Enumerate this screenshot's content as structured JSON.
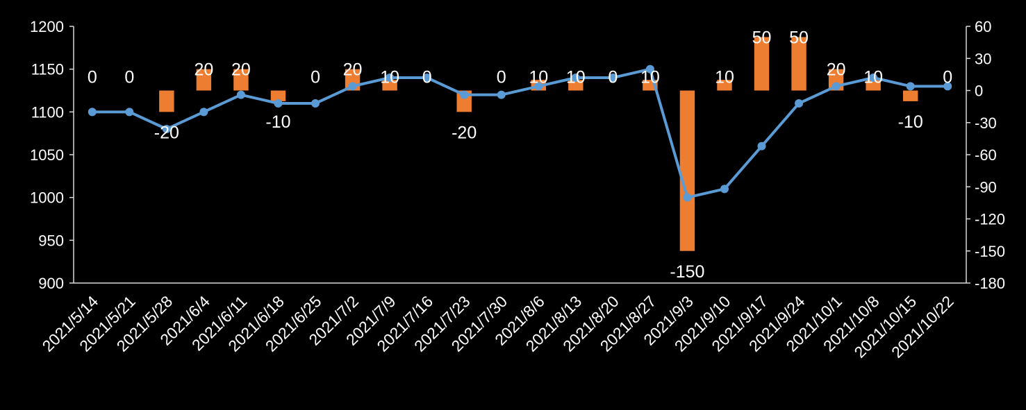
{
  "chart_data": {
    "type": "bar+line",
    "title": "",
    "background": "#000000",
    "categories": [
      "2021/5/14",
      "2021/5/21",
      "2021/5/28",
      "2021/6/4",
      "2021/6/11",
      "2021/6/18",
      "2021/6/25",
      "2021/7/2",
      "2021/7/9",
      "2021/7/16",
      "2021/7/23",
      "2021/7/30",
      "2021/8/6",
      "2021/8/13",
      "2021/8/20",
      "2021/8/27",
      "2021/9/3",
      "2021/9/10",
      "2021/9/17",
      "2021/9/24",
      "2021/10/1",
      "2021/10/8",
      "2021/10/15",
      "2021/10/22"
    ],
    "series": [
      {
        "type": "line",
        "axis": "left",
        "color": "#5B9BD5",
        "values": [
          1100,
          1100,
          1080,
          1100,
          1120,
          1110,
          1110,
          1130,
          1140,
          1140,
          1120,
          1120,
          1130,
          1140,
          1140,
          1150,
          1000,
          1010,
          1060,
          1110,
          1130,
          1140,
          1130,
          1130
        ]
      },
      {
        "type": "bar",
        "axis": "right",
        "color": "#ED7D31",
        "values": [
          0,
          0,
          -20,
          20,
          20,
          -10,
          0,
          20,
          10,
          0,
          -20,
          0,
          10,
          10,
          0,
          10,
          -150,
          10,
          50,
          50,
          20,
          10,
          -10,
          0
        ],
        "data_labels": [
          "0",
          "0",
          "-20",
          "20",
          "20",
          "-10",
          "0",
          "20",
          "10",
          "0",
          "-20",
          "0",
          "10",
          "10",
          "0",
          "10",
          "-150",
          "10",
          "50",
          "50",
          "20",
          "10",
          "-10",
          "0"
        ]
      }
    ],
    "y_left": {
      "min": 900,
      "max": 1200,
      "ticks": [
        "1200",
        "1150",
        "1100",
        "1050",
        "1000",
        "950",
        "900"
      ]
    },
    "y_right": {
      "min": -180,
      "max": 60,
      "ticks": [
        "60",
        "30",
        "0",
        "-30",
        "-60",
        "-90",
        "-120",
        "-150",
        "-180"
      ]
    },
    "grid": false,
    "legend": "none"
  }
}
